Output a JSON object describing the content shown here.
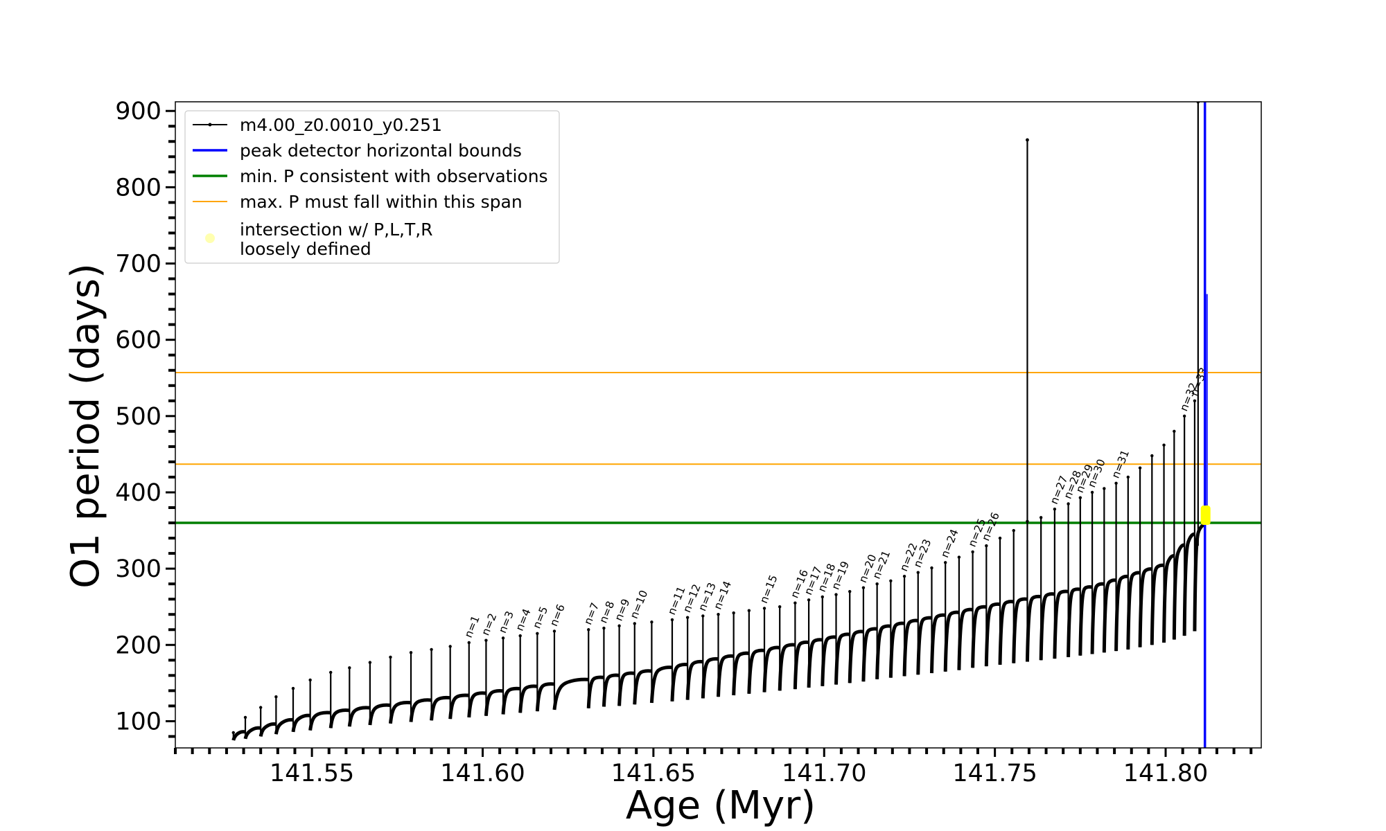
{
  "chart_data": {
    "type": "line",
    "xlabel": "Age (Myr)",
    "ylabel": "O1 period (days)",
    "xlim": [
      141.51,
      141.828
    ],
    "ylim": [
      65,
      912
    ],
    "x_ticks": [
      {
        "value": 141.55,
        "label": "141.55"
      },
      {
        "value": 141.6,
        "label": "141.60"
      },
      {
        "value": 141.65,
        "label": "141.65"
      },
      {
        "value": 141.7,
        "label": "141.70"
      },
      {
        "value": 141.75,
        "label": "141.75"
      },
      {
        "value": 141.8,
        "label": "141.80"
      }
    ],
    "x_minor_step": 0.005,
    "y_ticks": [
      {
        "value": 100,
        "label": "100"
      },
      {
        "value": 200,
        "label": "200"
      },
      {
        "value": 300,
        "label": "300"
      },
      {
        "value": 400,
        "label": "400"
      },
      {
        "value": 500,
        "label": "500"
      },
      {
        "value": 600,
        "label": "600"
      },
      {
        "value": 700,
        "label": "700"
      },
      {
        "value": 800,
        "label": "800"
      },
      {
        "value": 900,
        "label": "900"
      }
    ],
    "y_minor_step": 20,
    "grid": false,
    "legend_position": "top-left",
    "series": [
      {
        "name": "m4.00_z0.0010_y0.251",
        "color": "#000000",
        "style": "line-with-dots",
        "baseline": [
          [
            141.527,
            80
          ],
          [
            141.55,
            106
          ],
          [
            141.6,
            134
          ],
          [
            141.65,
            164
          ],
          [
            141.7,
            205
          ],
          [
            141.75,
            250
          ],
          [
            141.78,
            275
          ],
          [
            141.8,
            303
          ],
          [
            141.811,
            355
          ]
        ],
        "pulses": [
          {
            "age": 141.527,
            "peak": 85,
            "min": 75
          },
          {
            "age": 141.5305,
            "peak": 105,
            "min": 77
          },
          {
            "age": 141.535,
            "peak": 118,
            "min": 80
          },
          {
            "age": 141.5395,
            "peak": 132,
            "min": 83
          },
          {
            "age": 141.5445,
            "peak": 143,
            "min": 86
          },
          {
            "age": 141.5495,
            "peak": 154,
            "min": 88
          },
          {
            "age": 141.5555,
            "peak": 164,
            "min": 91
          },
          {
            "age": 141.561,
            "peak": 170,
            "min": 93
          },
          {
            "age": 141.567,
            "peak": 177,
            "min": 95
          },
          {
            "age": 141.573,
            "peak": 184,
            "min": 97
          },
          {
            "age": 141.579,
            "peak": 190,
            "min": 99
          },
          {
            "age": 141.585,
            "peak": 194,
            "min": 101
          },
          {
            "age": 141.5905,
            "peak": 198,
            "min": 103
          },
          {
            "age": 141.596,
            "peak": 203,
            "min": 105,
            "label": "n=1"
          },
          {
            "age": 141.601,
            "peak": 206,
            "min": 107,
            "label": "n=2"
          },
          {
            "age": 141.606,
            "peak": 209,
            "min": 109,
            "label": "n=3"
          },
          {
            "age": 141.611,
            "peak": 212,
            "min": 111,
            "label": "n=4"
          },
          {
            "age": 141.616,
            "peak": 215,
            "min": 113,
            "label": "n=5"
          },
          {
            "age": 141.621,
            "peak": 218,
            "min": 115,
            "label": "n=6"
          },
          {
            "age": 141.631,
            "peak": 220,
            "min": 117,
            "label": "n=7"
          },
          {
            "age": 141.6355,
            "peak": 222,
            "min": 119,
            "label": "n=8"
          },
          {
            "age": 141.64,
            "peak": 225,
            "min": 120,
            "label": "n=9"
          },
          {
            "age": 141.6445,
            "peak": 228,
            "min": 122,
            "label": "n=10"
          },
          {
            "age": 141.6495,
            "peak": 230,
            "min": 124
          },
          {
            "age": 141.6555,
            "peak": 233,
            "min": 126,
            "label": "n=11"
          },
          {
            "age": 141.66,
            "peak": 236,
            "min": 128,
            "label": "n=12"
          },
          {
            "age": 141.6645,
            "peak": 238,
            "min": 130,
            "label": "n=13"
          },
          {
            "age": 141.669,
            "peak": 240,
            "min": 132,
            "label": "n=14"
          },
          {
            "age": 141.6735,
            "peak": 242,
            "min": 134
          },
          {
            "age": 141.678,
            "peak": 245,
            "min": 136
          },
          {
            "age": 141.6825,
            "peak": 248,
            "min": 138,
            "label": "n=15"
          },
          {
            "age": 141.687,
            "peak": 250,
            "min": 140
          },
          {
            "age": 141.6915,
            "peak": 255,
            "min": 142,
            "label": "n=16"
          },
          {
            "age": 141.6955,
            "peak": 259,
            "min": 144,
            "label": "n=17"
          },
          {
            "age": 141.6995,
            "peak": 263,
            "min": 146,
            "label": "n=18"
          },
          {
            "age": 141.7035,
            "peak": 266,
            "min": 148,
            "label": "n=19"
          },
          {
            "age": 141.7075,
            "peak": 270,
            "min": 150
          },
          {
            "age": 141.7115,
            "peak": 275,
            "min": 152,
            "label": "n=20"
          },
          {
            "age": 141.7155,
            "peak": 280,
            "min": 155,
            "label": "n=21"
          },
          {
            "age": 141.7195,
            "peak": 284,
            "min": 157
          },
          {
            "age": 141.7235,
            "peak": 290,
            "min": 159,
            "label": "n=22"
          },
          {
            "age": 141.7275,
            "peak": 295,
            "min": 161,
            "label": "n=23"
          },
          {
            "age": 141.7315,
            "peak": 301,
            "min": 163
          },
          {
            "age": 141.7355,
            "peak": 308,
            "min": 165,
            "label": "n=24"
          },
          {
            "age": 141.7395,
            "peak": 315,
            "min": 167
          },
          {
            "age": 141.7435,
            "peak": 322,
            "min": 170,
            "label": "n=25"
          },
          {
            "age": 141.7475,
            "peak": 330,
            "min": 172,
            "label": "n=26"
          },
          {
            "age": 141.7515,
            "peak": 340,
            "min": 174
          },
          {
            "age": 141.7555,
            "peak": 350,
            "min": 176
          },
          {
            "age": 141.7595,
            "peak": 362,
            "min": 178
          },
          {
            "age": 141.7635,
            "peak": 367,
            "min": 180
          },
          {
            "age": 141.7675,
            "peak": 378,
            "min": 182,
            "label": "n=27"
          },
          {
            "age": 141.7715,
            "peak": 385,
            "min": 184,
            "label": "n=28"
          },
          {
            "age": 141.775,
            "peak": 393,
            "min": 186,
            "label": "n=29"
          },
          {
            "age": 141.7785,
            "peak": 400,
            "min": 188,
            "label": "n=30"
          },
          {
            "age": 141.782,
            "peak": 405,
            "min": 190
          },
          {
            "age": 141.7855,
            "peak": 412,
            "min": 192,
            "label": "n=31"
          },
          {
            "age": 141.789,
            "peak": 420,
            "min": 194
          },
          {
            "age": 141.7925,
            "peak": 432,
            "min": 197
          },
          {
            "age": 141.796,
            "peak": 448,
            "min": 200
          },
          {
            "age": 141.7995,
            "peak": 462,
            "min": 203
          },
          {
            "age": 141.8025,
            "peak": 480,
            "min": 207
          },
          {
            "age": 141.8055,
            "peak": 500,
            "min": 212,
            "label": "n=32"
          },
          {
            "age": 141.8085,
            "peak": 520,
            "min": 218,
            "label": "n=33"
          }
        ],
        "spikes": [
          {
            "age": 141.7595,
            "from": 360,
            "to": 862
          },
          {
            "age": 141.8095,
            "from": 330,
            "to": 912
          }
        ],
        "end_segment": {
          "age": 141.8115,
          "from": 370,
          "to": 660
        }
      },
      {
        "name": "peak detector horizontal bounds",
        "color": "#0000ff",
        "orientation": "vertical",
        "x": 141.8115
      },
      {
        "name": "min. P consistent with observations",
        "color": "#007f00",
        "orientation": "horizontal",
        "y": 360
      },
      {
        "name": "max. P must fall within this span",
        "color": "#ffa500",
        "orientation": "horizontal",
        "y": [
          437,
          557
        ]
      },
      {
        "name": "intersection w/ P,L,T,R\nloosely defined",
        "color": "#ffff00",
        "type": "scatter",
        "points": [
          [
            141.8115,
            370
          ]
        ]
      }
    ]
  }
}
